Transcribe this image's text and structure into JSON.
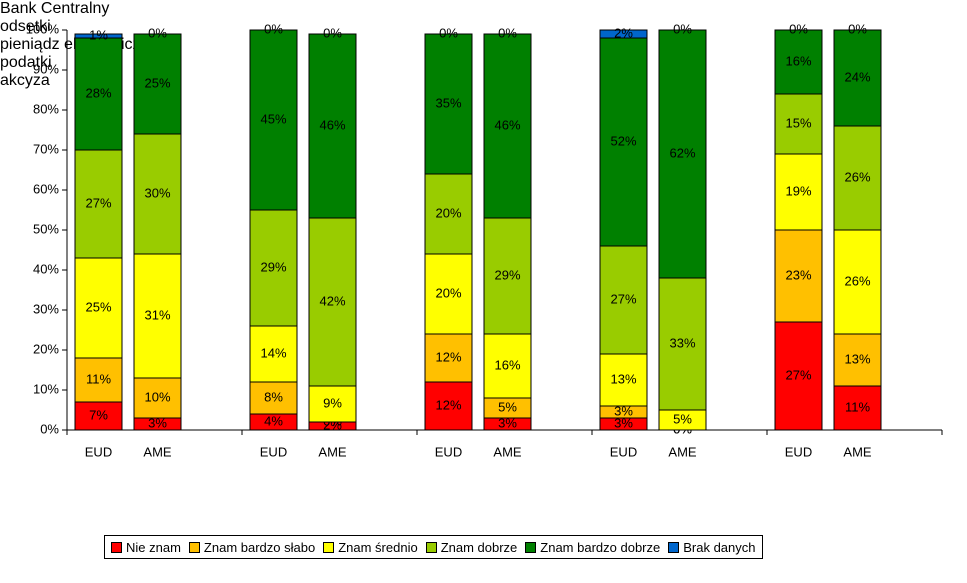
{
  "chart_data": {
    "type": "bar",
    "stacked": true,
    "categories": [
      "EUD",
      "AME",
      "EUD",
      "AME",
      "EUD",
      "AME",
      "EUD",
      "AME",
      "EUD",
      "AME"
    ],
    "groups": [
      "Bank Centralny",
      "odsetki",
      "pieniądz elektroniczny",
      "podatki",
      "akcyza"
    ],
    "series": [
      {
        "name": "Nie znam",
        "color": "#ff0000",
        "values": [
          7,
          3,
          4,
          2,
          12,
          3,
          3,
          0,
          27,
          11
        ],
        "value_labels": [
          "7%",
          "3%",
          "4%",
          "2%",
          "12%",
          "3%",
          "3%",
          "0%",
          "27%",
          "11%"
        ]
      },
      {
        "name": "Znam bardzo słabo",
        "color": "#ffc000",
        "values": [
          11,
          10,
          8,
          0,
          12,
          5,
          3,
          0,
          23,
          13
        ],
        "value_labels": [
          "11%",
          "10%",
          "8%",
          "0%",
          "12%",
          "5%",
          "3%",
          "0%",
          "23%",
          "13%"
        ]
      },
      {
        "name": "Znam średnio",
        "color": "#ffff00",
        "values": [
          25,
          31,
          14,
          9,
          20,
          16,
          13,
          5,
          19,
          26
        ],
        "value_labels": [
          "25%",
          "31%",
          "14%",
          "9%",
          "20%",
          "16%",
          "13%",
          "5%",
          "19%",
          "26%"
        ]
      },
      {
        "name": "Znam dobrze",
        "color": "#99cc00",
        "values": [
          27,
          30,
          29,
          42,
          20,
          29,
          27,
          33,
          15,
          26
        ],
        "value_labels": [
          "27%",
          "30%",
          "29%",
          "42%",
          "20%",
          "29%",
          "27%",
          "33%",
          "15%",
          "26%"
        ]
      },
      {
        "name": "Znam bardzo dobrze",
        "color": "#008000",
        "values": [
          28,
          25,
          45,
          46,
          35,
          46,
          52,
          62,
          16,
          24
        ],
        "value_labels": [
          "28%",
          "25%",
          "45%",
          "46%",
          "35%",
          "46%",
          "52%",
          "62%",
          "16%",
          "24%"
        ]
      },
      {
        "name": "Brak danych",
        "color": "#0066cc",
        "values": [
          1,
          0,
          0,
          0,
          0,
          0,
          2,
          0,
          0,
          0
        ],
        "value_labels": [
          "1%",
          "0%",
          "0%",
          "0%",
          "0%",
          "0%",
          "2%",
          "0%",
          "0%",
          "0%"
        ]
      }
    ],
    "ylim": [
      0,
      100
    ],
    "yticks": [
      {
        "value": 0,
        "label": "0%"
      },
      {
        "value": 10,
        "label": "10%"
      },
      {
        "value": 20,
        "label": "20%"
      },
      {
        "value": 30,
        "label": "30%"
      },
      {
        "value": 40,
        "label": "40%"
      },
      {
        "value": 50,
        "label": "50%"
      },
      {
        "value": 60,
        "label": "60%"
      },
      {
        "value": 70,
        "label": "70%"
      },
      {
        "value": 80,
        "label": "80%"
      },
      {
        "value": 90,
        "label": "90%"
      },
      {
        "value": 100,
        "label": "100%"
      }
    ],
    "grid": false,
    "legend": "bottom"
  }
}
